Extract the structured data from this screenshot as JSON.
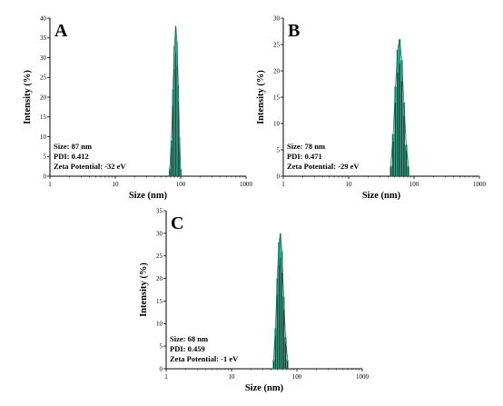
{
  "chart_data": [
    {
      "type": "bar",
      "panel_label": "A",
      "xlabel": "Size (nm)",
      "ylabel": "Intensity (%)",
      "x_scale": "log",
      "xlim": [
        1,
        1000
      ],
      "xticks": [
        "1",
        "10",
        "100",
        "1000"
      ],
      "ylim": [
        0,
        40
      ],
      "yticks": [
        "0",
        "5",
        "10",
        "15",
        "20",
        "25",
        "30",
        "35",
        "40"
      ],
      "peak_x": [
        68,
        72,
        76,
        80,
        84,
        88,
        92,
        96,
        100
      ],
      "peak_y": [
        2,
        9,
        22,
        33,
        38,
        34,
        23,
        10,
        2
      ],
      "annotations": [
        "Size: 87 nm",
        "PDI: 0.412",
        "Zeta Potential: -32 eV"
      ],
      "colors": {
        "fill": "#1fa07e",
        "dark": "#0d1a14"
      }
    },
    {
      "type": "bar",
      "panel_label": "B",
      "xlabel": "Size (nm)",
      "ylabel": "Intensity (%)",
      "x_scale": "log",
      "xlim": [
        1,
        1000
      ],
      "xticks": [
        "1",
        "10",
        "100",
        "1000"
      ],
      "ylim": [
        0,
        30
      ],
      "yticks": [
        "0",
        "5",
        "10",
        "15",
        "20",
        "25",
        "30"
      ],
      "peak_x": [
        44,
        48,
        52,
        56,
        60,
        65,
        70,
        76,
        82
      ],
      "peak_y": [
        2,
        8,
        17,
        24,
        26,
        22,
        14,
        6,
        2
      ],
      "annotations": [
        "Size: 78 nm",
        "PDI: 0.471",
        "Zeta Potential: -29 eV"
      ],
      "colors": {
        "fill": "#1fa07e",
        "dark": "#0d1a14"
      }
    },
    {
      "type": "bar",
      "panel_label": "C",
      "xlabel": "Size (nm)",
      "ylabel": "Intensity (%)",
      "x_scale": "log",
      "xlim": [
        1,
        1000
      ],
      "xticks": [
        "1",
        "10",
        "100",
        "1000"
      ],
      "ylim": [
        0,
        35
      ],
      "yticks": [
        "0",
        "5",
        "10",
        "15",
        "20",
        "25",
        "30",
        "35"
      ],
      "peak_x": [
        44,
        47,
        50,
        53,
        56,
        59,
        63,
        67,
        72
      ],
      "peak_y": [
        2,
        9,
        20,
        28,
        30,
        26,
        16,
        7,
        2
      ],
      "annotations": [
        "Size: 68 nm",
        "PDI: 0.459",
        "Zeta Potential: -1 eV"
      ],
      "colors": {
        "fill": "#1fa07e",
        "dark": "#0d1a14"
      }
    }
  ]
}
